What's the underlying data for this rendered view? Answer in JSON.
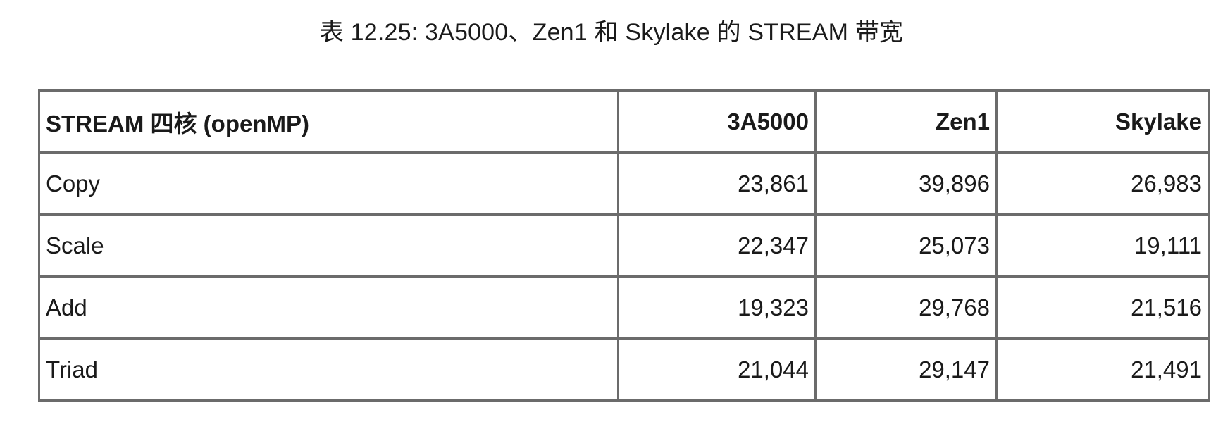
{
  "caption": "表 12.25: 3A5000、Zen1 和 Skylake 的 STREAM 带宽",
  "table": {
    "headers": [
      "STREAM 四核 (openMP)",
      "3A5000",
      "Zen1",
      "Skylake"
    ],
    "rows": [
      [
        "Copy",
        "23,861",
        "39,896",
        "26,983"
      ],
      [
        "Scale",
        "22,347",
        "25,073",
        "19,111"
      ],
      [
        "Add",
        "19,323",
        "29,768",
        "21,516"
      ],
      [
        "Triad",
        "21,044",
        "29,147",
        "21,491"
      ]
    ]
  }
}
